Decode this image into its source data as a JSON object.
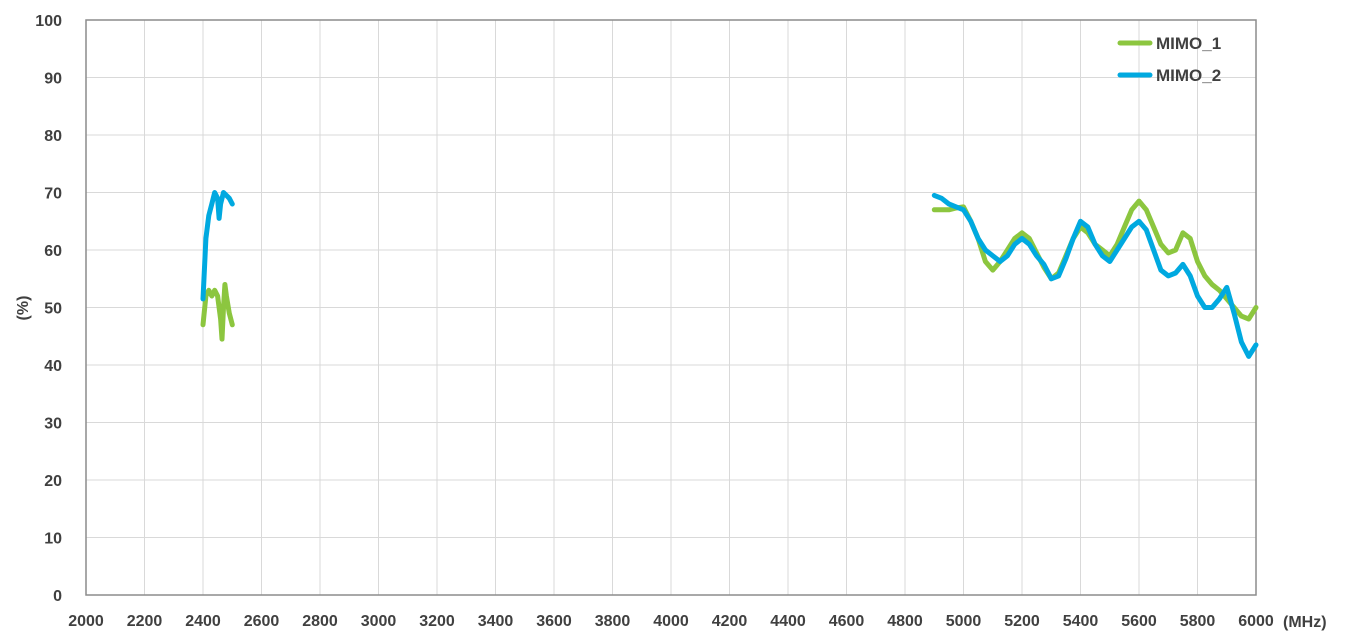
{
  "chart_data": {
    "type": "line",
    "xlabel": "(MHz)",
    "ylabel": "(%)",
    "xlim": [
      2000,
      6000
    ],
    "ylim": [
      0,
      100
    ],
    "x_ticks": [
      "2000",
      "2200",
      "2400",
      "2600",
      "2800",
      "3000",
      "3200",
      "3400",
      "3600",
      "3800",
      "4000",
      "4200",
      "4400",
      "4600",
      "4800",
      "5000",
      "5200",
      "5400",
      "5600",
      "5800",
      "6000"
    ],
    "y_ticks": [
      "0",
      "10",
      "20",
      "30",
      "40",
      "50",
      "60",
      "70",
      "80",
      "90",
      "100"
    ],
    "grid": true,
    "legend_position": "top-right",
    "series": [
      {
        "name": "MIMO_1",
        "color": "#8cc63f",
        "segments": [
          [
            [
              2400,
              47
            ],
            [
              2410,
              52
            ],
            [
              2420,
              53
            ],
            [
              2430,
              52
            ],
            [
              2440,
              53
            ],
            [
              2450,
              52
            ],
            [
              2460,
              48
            ],
            [
              2465,
              44.5
            ],
            [
              2470,
              50
            ],
            [
              2475,
              54
            ],
            [
              2480,
              52
            ],
            [
              2490,
              49
            ],
            [
              2500,
              47
            ]
          ],
          [
            [
              4900,
              67
            ],
            [
              4925,
              67
            ],
            [
              4950,
              67
            ],
            [
              4975,
              67.3
            ],
            [
              5000,
              67.5
            ],
            [
              5025,
              65
            ],
            [
              5050,
              62
            ],
            [
              5075,
              58
            ],
            [
              5100,
              56.5
            ],
            [
              5125,
              58
            ],
            [
              5150,
              60
            ],
            [
              5175,
              62
            ],
            [
              5200,
              63
            ],
            [
              5225,
              62
            ],
            [
              5250,
              59.5
            ],
            [
              5275,
              57
            ],
            [
              5300,
              55
            ],
            [
              5325,
              56
            ],
            [
              5350,
              59
            ],
            [
              5375,
              62
            ],
            [
              5400,
              64
            ],
            [
              5425,
              63
            ],
            [
              5450,
              61
            ],
            [
              5475,
              60
            ],
            [
              5500,
              59
            ],
            [
              5525,
              61
            ],
            [
              5550,
              64
            ],
            [
              5575,
              67
            ],
            [
              5600,
              68.5
            ],
            [
              5625,
              67
            ],
            [
              5650,
              64
            ],
            [
              5675,
              61
            ],
            [
              5700,
              59.5
            ],
            [
              5725,
              60
            ],
            [
              5750,
              63
            ],
            [
              5775,
              62
            ],
            [
              5800,
              58
            ],
            [
              5825,
              55.5
            ],
            [
              5850,
              54
            ],
            [
              5875,
              53
            ],
            [
              5900,
              51.5
            ],
            [
              5925,
              50
            ],
            [
              5950,
              48.5
            ],
            [
              5975,
              48
            ],
            [
              6000,
              50
            ]
          ]
        ]
      },
      {
        "name": "MIMO_2",
        "color": "#00a9e0",
        "segments": [
          [
            [
              2400,
              51.5
            ],
            [
              2410,
              62
            ],
            [
              2420,
              66
            ],
            [
              2430,
              68
            ],
            [
              2440,
              70
            ],
            [
              2450,
              69
            ],
            [
              2455,
              65.5
            ],
            [
              2460,
              68
            ],
            [
              2470,
              70
            ],
            [
              2480,
              69.5
            ],
            [
              2490,
              69
            ],
            [
              2500,
              68
            ]
          ],
          [
            [
              4900,
              69.5
            ],
            [
              4925,
              69
            ],
            [
              4950,
              68
            ],
            [
              4975,
              67.5
            ],
            [
              5000,
              67
            ],
            [
              5025,
              65
            ],
            [
              5050,
              62
            ],
            [
              5075,
              60
            ],
            [
              5100,
              59
            ],
            [
              5125,
              58
            ],
            [
              5150,
              59
            ],
            [
              5175,
              61
            ],
            [
              5200,
              62
            ],
            [
              5225,
              61
            ],
            [
              5250,
              59
            ],
            [
              5275,
              57.5
            ],
            [
              5300,
              55
            ],
            [
              5325,
              55.5
            ],
            [
              5350,
              58.5
            ],
            [
              5375,
              62
            ],
            [
              5400,
              65
            ],
            [
              5425,
              64
            ],
            [
              5450,
              61
            ],
            [
              5475,
              59
            ],
            [
              5500,
              58
            ],
            [
              5525,
              60
            ],
            [
              5550,
              62
            ],
            [
              5575,
              64
            ],
            [
              5600,
              65
            ],
            [
              5625,
              63.5
            ],
            [
              5650,
              60
            ],
            [
              5675,
              56.5
            ],
            [
              5700,
              55.5
            ],
            [
              5725,
              56
            ],
            [
              5750,
              57.5
            ],
            [
              5775,
              55.5
            ],
            [
              5800,
              52
            ],
            [
              5825,
              50
            ],
            [
              5850,
              50
            ],
            [
              5875,
              51.5
            ],
            [
              5900,
              53.5
            ],
            [
              5925,
              49
            ],
            [
              5950,
              44
            ],
            [
              5975,
              41.5
            ],
            [
              6000,
              43.5
            ]
          ]
        ]
      }
    ]
  }
}
